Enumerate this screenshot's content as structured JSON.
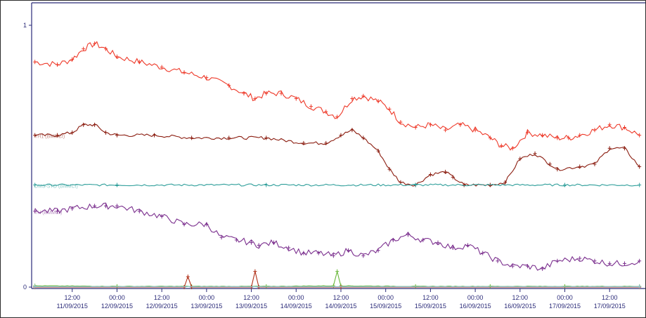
{
  "chart_data": {
    "type": "line",
    "title": "",
    "xlabel": "",
    "ylabel": "",
    "ylim": [
      0,
      1
    ],
    "grid": false,
    "legend": "none",
    "y_ticks": [
      "0",
      "1"
    ],
    "x_ticks": [
      {
        "time": "12:00",
        "date": "11/09/2015"
      },
      {
        "time": "00:00",
        "date": "12/09/2015"
      },
      {
        "time": "12:00",
        "date": "12/09/2015"
      },
      {
        "time": "00:00",
        "date": "13/09/2015"
      },
      {
        "time": "12:00",
        "date": "13/09/2015"
      },
      {
        "time": "00:00",
        "date": "14/09/2015"
      },
      {
        "time": "12:00",
        "date": "14/09/2015"
      },
      {
        "time": "00:00",
        "date": "15/09/2015"
      },
      {
        "time": "12:00",
        "date": "15/09/2015"
      },
      {
        "time": "00:00",
        "date": "16/09/2015"
      },
      {
        "time": "12:00",
        "date": "16/09/2015"
      },
      {
        "time": "00:00",
        "date": "17/09/2015"
      },
      {
        "time": "12:00",
        "date": "17/09/2015"
      }
    ],
    "x_hours": [
      -12,
      0,
      12,
      24,
      36,
      48,
      60,
      72,
      84,
      96,
      108,
      120,
      132
    ],
    "x_start_hour": -22.5,
    "x_end_hour": 141,
    "series": [
      {
        "name": "",
        "color": "#ee3a2a",
        "values": [
          [
            -22,
            0.86
          ],
          [
            -16,
            0.85
          ],
          [
            -12,
            0.87
          ],
          [
            -9,
            0.91
          ],
          [
            -6,
            0.93
          ],
          [
            -3,
            0.91
          ],
          [
            0,
            0.88
          ],
          [
            6,
            0.86
          ],
          [
            12,
            0.84
          ],
          [
            18,
            0.82
          ],
          [
            24,
            0.8
          ],
          [
            30,
            0.77
          ],
          [
            34,
            0.74
          ],
          [
            37,
            0.72
          ],
          [
            40,
            0.74
          ],
          [
            44,
            0.74
          ],
          [
            48,
            0.72
          ],
          [
            52,
            0.69
          ],
          [
            56,
            0.67
          ],
          [
            59,
            0.65
          ],
          [
            63,
            0.72
          ],
          [
            66,
            0.73
          ],
          [
            70,
            0.71
          ],
          [
            73,
            0.68
          ],
          [
            76,
            0.63
          ],
          [
            80,
            0.61
          ],
          [
            84,
            0.62
          ],
          [
            88,
            0.6
          ],
          [
            92,
            0.62
          ],
          [
            96,
            0.6
          ],
          [
            100,
            0.57
          ],
          [
            103,
            0.54
          ],
          [
            106,
            0.53
          ],
          [
            110,
            0.59
          ],
          [
            114,
            0.58
          ],
          [
            118,
            0.57
          ],
          [
            121,
            0.57
          ],
          [
            124,
            0.58
          ],
          [
            128,
            0.6
          ],
          [
            132,
            0.62
          ],
          [
            136,
            0.61
          ],
          [
            140,
            0.58
          ]
        ]
      },
      {
        "name": "TH1 (BMMCf)",
        "color": "#8b1d10",
        "values": [
          [
            -22,
            0.58
          ],
          [
            -16,
            0.58
          ],
          [
            -12,
            0.59
          ],
          [
            -9,
            0.62
          ],
          [
            -6,
            0.62
          ],
          [
            -3,
            0.59
          ],
          [
            0,
            0.58
          ],
          [
            10,
            0.58
          ],
          [
            20,
            0.57
          ],
          [
            30,
            0.57
          ],
          [
            40,
            0.57
          ],
          [
            50,
            0.55
          ],
          [
            56,
            0.55
          ],
          [
            60,
            0.58
          ],
          [
            63,
            0.6
          ],
          [
            66,
            0.57
          ],
          [
            70,
            0.52
          ],
          [
            73,
            0.45
          ],
          [
            76,
            0.4
          ],
          [
            80,
            0.39
          ],
          [
            84,
            0.43
          ],
          [
            88,
            0.44
          ],
          [
            90,
            0.42
          ],
          [
            93,
            0.39
          ],
          [
            100,
            0.39
          ],
          [
            104,
            0.4
          ],
          [
            108,
            0.49
          ],
          [
            112,
            0.51
          ],
          [
            116,
            0.47
          ],
          [
            118,
            0.45
          ],
          [
            124,
            0.46
          ],
          [
            128,
            0.47
          ],
          [
            132,
            0.53
          ],
          [
            136,
            0.53
          ],
          [
            140,
            0.46
          ]
        ]
      },
      {
        "name": "DMS-STD (BMMCf)",
        "color": "#2e9e9a",
        "values": [
          [
            -22,
            0.39
          ],
          [
            0,
            0.39
          ],
          [
            40,
            0.39
          ],
          [
            80,
            0.39
          ],
          [
            120,
            0.39
          ],
          [
            140,
            0.39
          ]
        ]
      },
      {
        "name": "TH (BMMCf)",
        "color": "#7b2f8e",
        "values": [
          [
            -22,
            0.29
          ],
          [
            -16,
            0.29
          ],
          [
            -12,
            0.3
          ],
          [
            -6,
            0.31
          ],
          [
            -3,
            0.31
          ],
          [
            0,
            0.31
          ],
          [
            6,
            0.29
          ],
          [
            12,
            0.27
          ],
          [
            18,
            0.24
          ],
          [
            24,
            0.24
          ],
          [
            28,
            0.19
          ],
          [
            32,
            0.18
          ],
          [
            36,
            0.17
          ],
          [
            38,
            0.16
          ],
          [
            42,
            0.17
          ],
          [
            46,
            0.15
          ],
          [
            50,
            0.13
          ],
          [
            54,
            0.13
          ],
          [
            58,
            0.12
          ],
          [
            62,
            0.14
          ],
          [
            66,
            0.12
          ],
          [
            70,
            0.14
          ],
          [
            74,
            0.18
          ],
          [
            78,
            0.2
          ],
          [
            82,
            0.18
          ],
          [
            86,
            0.17
          ],
          [
            90,
            0.15
          ],
          [
            94,
            0.16
          ],
          [
            98,
            0.13
          ],
          [
            102,
            0.1
          ],
          [
            106,
            0.08
          ],
          [
            110,
            0.08
          ],
          [
            114,
            0.07
          ],
          [
            118,
            0.1
          ],
          [
            124,
            0.11
          ],
          [
            128,
            0.1
          ],
          [
            132,
            0.09
          ],
          [
            136,
            0.09
          ],
          [
            140,
            0.1
          ]
        ]
      },
      {
        "name": "",
        "color": "#6ab83a",
        "values": [
          [
            -22,
            0.005
          ],
          [
            0,
            0.003
          ],
          [
            20,
            0.003
          ],
          [
            40,
            0.003
          ],
          [
            58,
            0.005
          ],
          [
            59,
            0.06
          ],
          [
            60,
            0.005
          ],
          [
            80,
            0.003
          ],
          [
            100,
            0.003
          ],
          [
            120,
            0.003
          ],
          [
            140,
            0.003
          ]
        ]
      },
      {
        "name": "",
        "color": "#b03018",
        "values": [
          [
            -22,
            0.0
          ],
          [
            18,
            0.0
          ],
          [
            19,
            0.04
          ],
          [
            20,
            0.0
          ],
          [
            36,
            0.0
          ],
          [
            37,
            0.06
          ],
          [
            38,
            0.0
          ],
          [
            60,
            0.0
          ],
          [
            140,
            0.0
          ]
        ]
      },
      {
        "name": "",
        "color": "#8fcbe0",
        "values": [
          [
            -22,
            0.002
          ],
          [
            140,
            0.002
          ]
        ]
      }
    ]
  }
}
